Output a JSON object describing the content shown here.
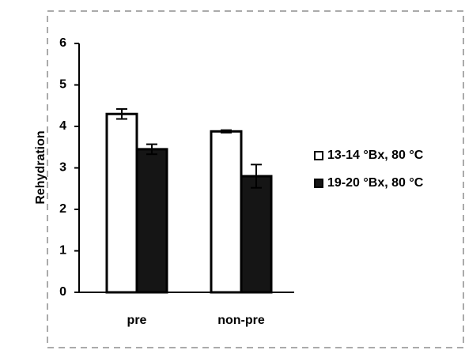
{
  "chart_data": {
    "type": "bar",
    "y_label": "Rehydration",
    "categories": [
      "pre",
      "non-pre"
    ],
    "series": [
      {
        "name": "13-14 °Bx, 80 °C",
        "color": "#ffffff",
        "values": [
          4.3,
          3.88
        ],
        "errors": [
          0.12,
          0.03
        ]
      },
      {
        "name": "19-20 °Bx, 80 °C",
        "color": "#151515",
        "values": [
          3.45,
          2.8
        ],
        "errors": [
          0.12,
          0.28
        ]
      }
    ],
    "ylim": [
      0,
      6
    ],
    "yticks": [
      0,
      1,
      2,
      3,
      4,
      5,
      6
    ],
    "legend": "right"
  }
}
